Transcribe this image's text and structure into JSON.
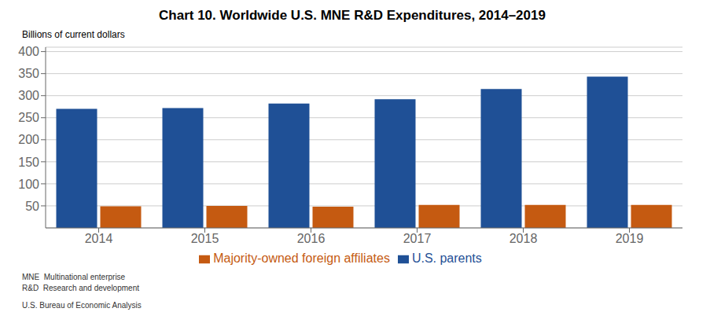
{
  "chart_data": {
    "type": "bar",
    "title": "Chart 10. Worldwide U.S. MNE R&D Expenditures, 2014–2019",
    "ylabel": "Billions of current dollars",
    "categories": [
      "2014",
      "2015",
      "2016",
      "2017",
      "2018",
      "2019"
    ],
    "series": [
      {
        "name": "U.S. parents",
        "color": "#1F5096",
        "values": [
          270,
          272,
          282,
          292,
          315,
          343
        ]
      },
      {
        "name": "Majority-owned foreign affiliates",
        "color": "#C55A11",
        "values": [
          49,
          50,
          48,
          52,
          52,
          52
        ]
      }
    ],
    "ylim": [
      0,
      410
    ],
    "yticks": [
      50,
      100,
      150,
      200,
      250,
      300,
      350,
      400
    ],
    "grid": true,
    "legend": "bottom",
    "annotations": [
      "MNE  Multinational enterprise",
      "R&D  Research and development",
      "U.S. Bureau of Economic Analysis"
    ]
  }
}
